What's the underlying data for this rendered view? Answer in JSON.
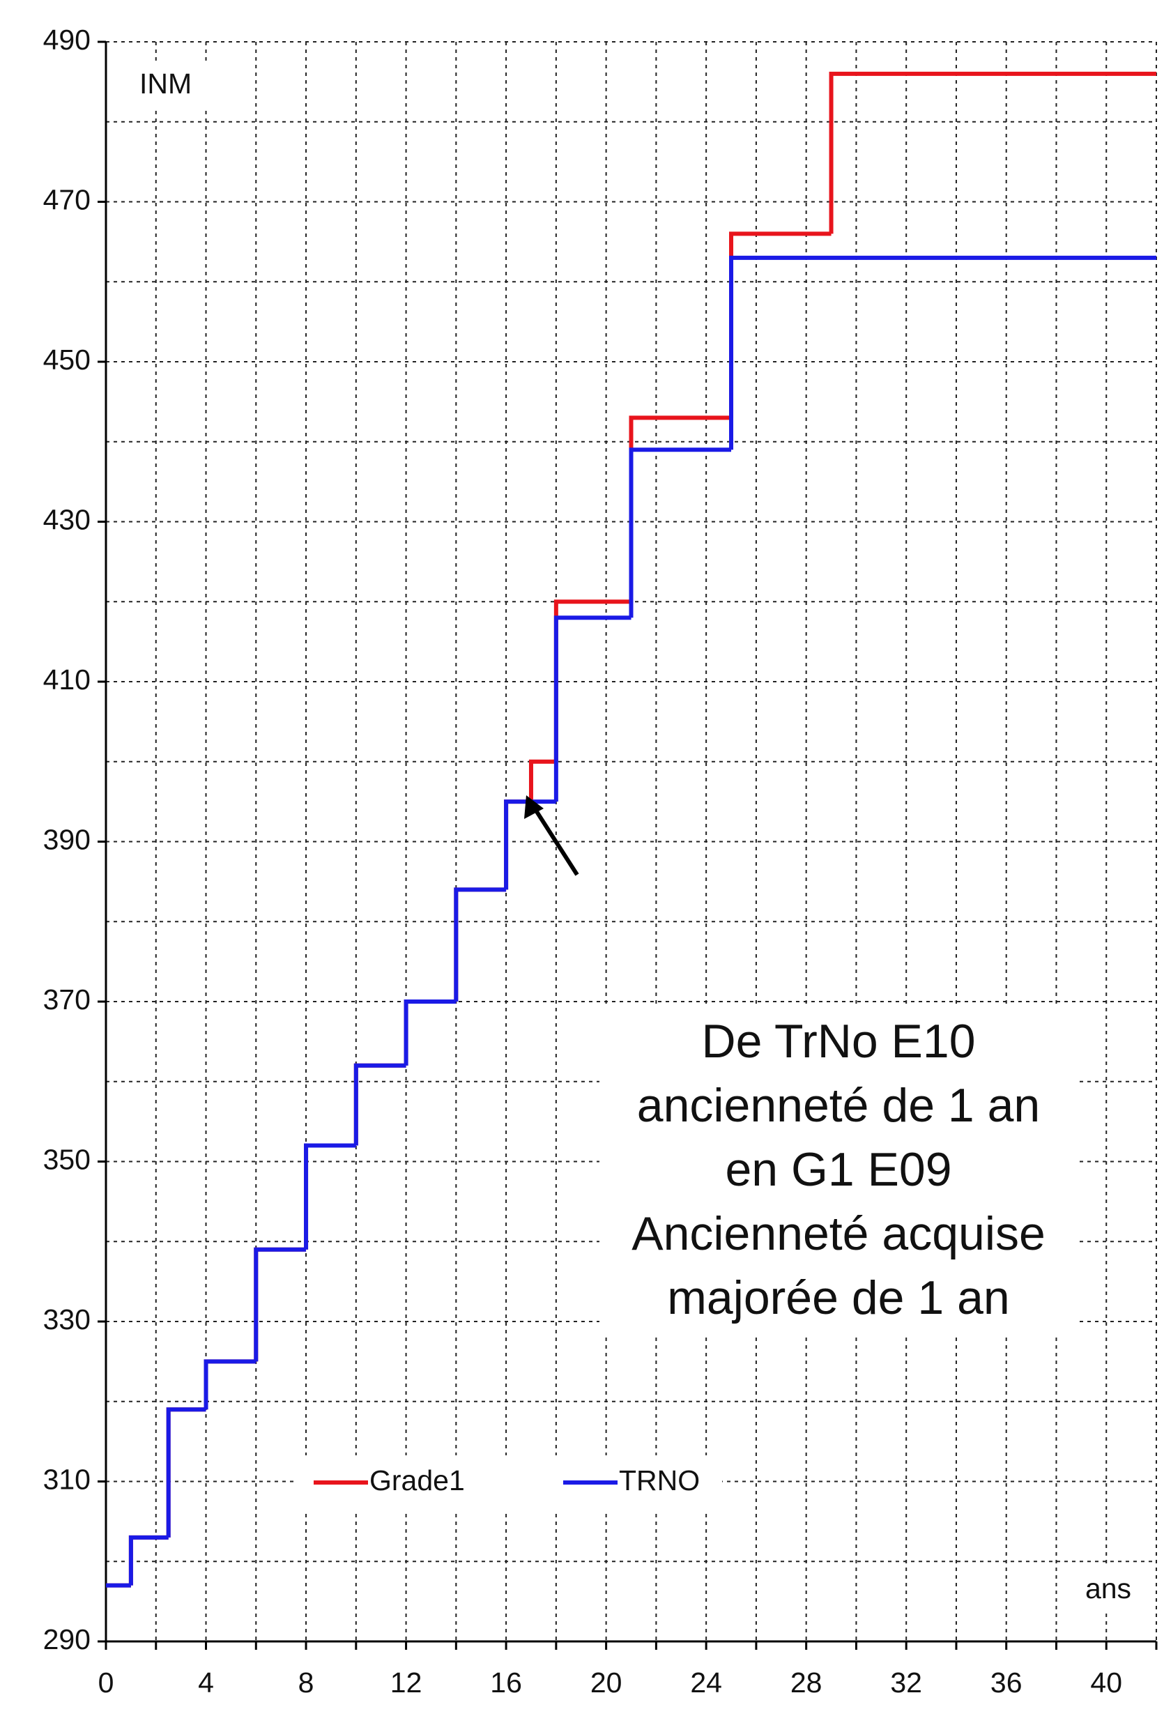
{
  "chart_data": {
    "type": "step",
    "y_label": "INM",
    "x_label": "ans",
    "annotation": [
      "De TrNo E10",
      "ancienneté de 1 an",
      "en G1 E09",
      "Ancienneté acquise",
      "majorée de 1 an"
    ],
    "xlim": [
      0,
      42
    ],
    "ylim": [
      290,
      490
    ],
    "xticks": [
      0,
      4,
      8,
      12,
      16,
      20,
      24,
      28,
      32,
      36,
      40
    ],
    "xminor_ticks": [
      2,
      6,
      10,
      14,
      18,
      22,
      26,
      30,
      34,
      38,
      42
    ],
    "yticks": [
      290,
      310,
      330,
      350,
      370,
      390,
      410,
      430,
      450,
      470,
      490
    ],
    "yminor_ticks": [
      300,
      320,
      340,
      360,
      380,
      400,
      420,
      440,
      460,
      480
    ],
    "grid": true,
    "legend": "bottom-left",
    "series": [
      {
        "name": "Grade1",
        "color": "#e8141c",
        "x": [
          0,
          1,
          2.5,
          4,
          6,
          8,
          10,
          12,
          14,
          16,
          17,
          18,
          21,
          25,
          29
        ],
        "values": [
          297,
          303,
          319,
          325,
          339,
          352,
          362,
          370,
          384,
          395,
          400,
          420,
          443,
          466,
          486
        ]
      },
      {
        "name": "TRNO",
        "color": "#1a1ae6",
        "x": [
          0,
          1,
          2.5,
          4,
          6,
          8,
          10,
          12,
          14,
          16,
          18,
          21,
          25
        ],
        "values": [
          297,
          303,
          319,
          325,
          339,
          352,
          362,
          370,
          384,
          395,
          418,
          439,
          463
        ]
      }
    ]
  }
}
